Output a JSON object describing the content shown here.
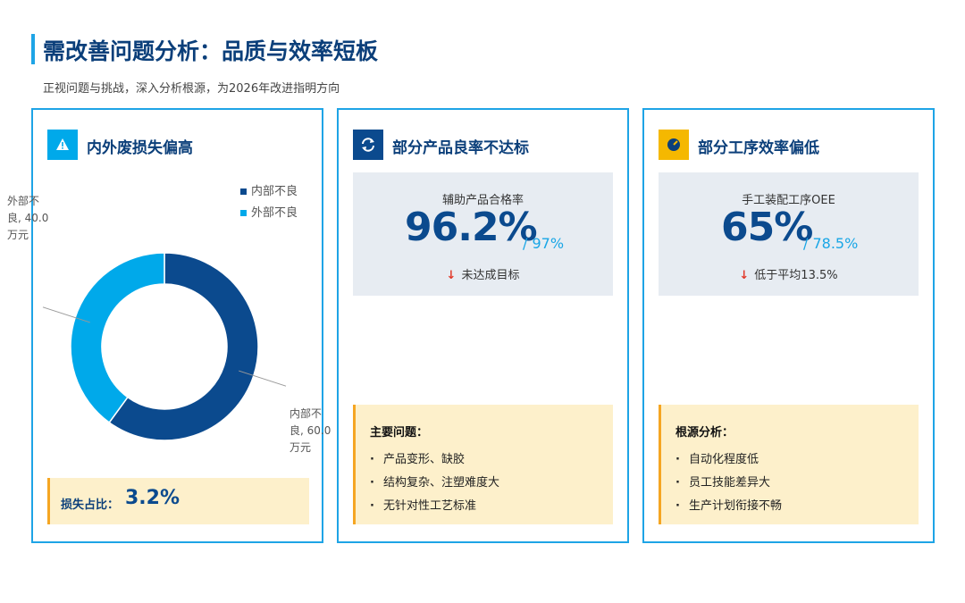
{
  "header": {
    "title": "需改善问题分析：品质与效率短板",
    "subtitle": "正视问题与挑战，深入分析根源，为2026年改进指明方向"
  },
  "cards": [
    {
      "title": "内外废损失偏高",
      "footer_label": "损失占比：",
      "footer_value": "3.2%"
    },
    {
      "title": "部分产品良率不达标",
      "metric_label": "辅助产品合格率",
      "metric_value": "96.2%",
      "metric_target": "/ 97%",
      "metric_note": "未达成目标",
      "list_title": "主要问题：",
      "items": [
        "产品变形、缺胶",
        "结构复杂、注塑难度大",
        "无针对性工艺标准"
      ]
    },
    {
      "title": "部分工序效率偏低",
      "metric_label": "手工装配工序OEE",
      "metric_value": "65%",
      "metric_target": "/ 78.5%",
      "metric_note": "低于平均13.5%",
      "list_title": "根源分析：",
      "items": [
        "自动化程度低",
        "员工技能差异大",
        "生产计划衔接不畅"
      ]
    }
  ],
  "chart_data": {
    "type": "donut",
    "categories": [
      "内部不良",
      "外部不良"
    ],
    "values": [
      60,
      40
    ],
    "value_labels": [
      "内部不良, 60.0 万元",
      "外部不良, 40.0 万元"
    ],
    "colors": [
      "#0b4a8e",
      "#00a9ea"
    ],
    "legend": "top-right"
  }
}
